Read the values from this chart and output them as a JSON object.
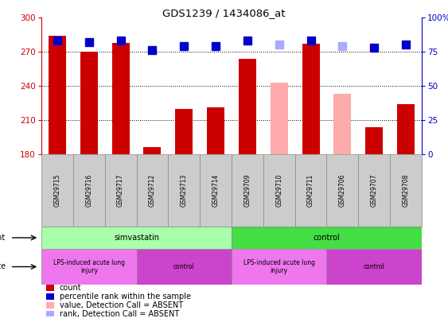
{
  "title": "GDS1239 / 1434086_at",
  "samples": [
    "GSM29715",
    "GSM29716",
    "GSM29717",
    "GSM29712",
    "GSM29713",
    "GSM29714",
    "GSM29709",
    "GSM29710",
    "GSM29711",
    "GSM29706",
    "GSM29707",
    "GSM29708"
  ],
  "bar_values": [
    284,
    270,
    278,
    186,
    220,
    221,
    264,
    243,
    277,
    233,
    204,
    224
  ],
  "bar_colors": [
    "#cc0000",
    "#cc0000",
    "#cc0000",
    "#cc0000",
    "#cc0000",
    "#cc0000",
    "#cc0000",
    "#ffaaaa",
    "#cc0000",
    "#ffaaaa",
    "#cc0000",
    "#cc0000"
  ],
  "rank_values": [
    83,
    82,
    83,
    76,
    79,
    79,
    83,
    80,
    83,
    79,
    78,
    80
  ],
  "rank_colors": [
    "#0000cc",
    "#0000cc",
    "#0000cc",
    "#0000cc",
    "#0000cc",
    "#0000cc",
    "#0000cc",
    "#aaaaff",
    "#0000cc",
    "#aaaaff",
    "#0000cc",
    "#0000cc"
  ],
  "ylim_left": [
    180,
    300
  ],
  "ylim_right": [
    0,
    100
  ],
  "yticks_left": [
    180,
    210,
    240,
    270,
    300
  ],
  "yticks_right": [
    0,
    25,
    50,
    75,
    100
  ],
  "ytick_labels_right": [
    "0",
    "25",
    "50",
    "75",
    "100%"
  ],
  "agent_groups": [
    {
      "label": "simvastatin",
      "start": 0,
      "end": 6,
      "color": "#aaffaa"
    },
    {
      "label": "control",
      "start": 6,
      "end": 12,
      "color": "#44dd44"
    }
  ],
  "disease_groups": [
    {
      "label": "LPS-induced acute lung\ninjury",
      "start": 0,
      "end": 3,
      "color": "#ee77ee"
    },
    {
      "label": "control",
      "start": 3,
      "end": 6,
      "color": "#cc44cc"
    },
    {
      "label": "LPS-induced acute lung\ninjury",
      "start": 6,
      "end": 9,
      "color": "#ee77ee"
    },
    {
      "label": "control",
      "start": 9,
      "end": 12,
      "color": "#cc44cc"
    }
  ],
  "legend_items": [
    {
      "label": "count",
      "color": "#cc0000"
    },
    {
      "label": "percentile rank within the sample",
      "color": "#0000cc"
    },
    {
      "label": "value, Detection Call = ABSENT",
      "color": "#ffaaaa"
    },
    {
      "label": "rank, Detection Call = ABSENT",
      "color": "#aaaaff"
    }
  ],
  "bar_width": 0.55,
  "rank_marker_size": 7,
  "left_axis_color": "#cc0000",
  "right_axis_color": "#0000cc",
  "gridline_values": [
    210,
    240,
    270
  ]
}
